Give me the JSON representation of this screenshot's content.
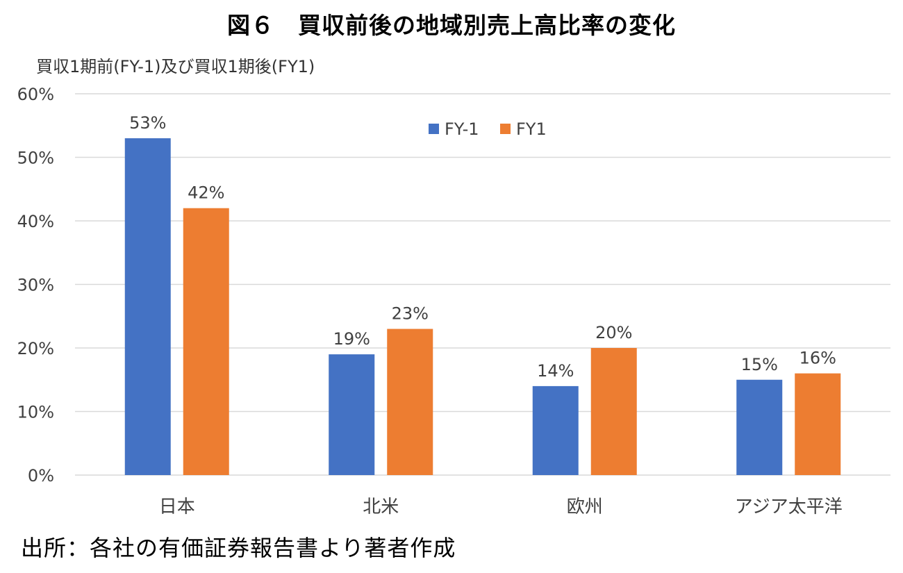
{
  "title": "図６　買収前後の地域別売上高比率の変化",
  "subtitle": "買収1期前(FY-1)及び買収1期後(FY1)",
  "source": "出所：各社の有価証券報告書より著者作成",
  "colors": {
    "fy_minus1": "#4472C4",
    "fy1": "#ED7D31",
    "grid": "#D9D9D9"
  },
  "chart_data": {
    "type": "bar",
    "categories": [
      "日本",
      "北米",
      "欧州",
      "アジア太平洋"
    ],
    "series": [
      {
        "name": "FY-1",
        "values": [
          53,
          19,
          14,
          15
        ],
        "labels": [
          "53%",
          "19%",
          "14%",
          "15%"
        ]
      },
      {
        "name": "FY1",
        "values": [
          42,
          23,
          20,
          16
        ],
        "labels": [
          "42%",
          "23%",
          "20%",
          "16%"
        ]
      }
    ],
    "ylim": [
      0,
      60
    ],
    "yticks": [
      "0%",
      "10%",
      "20%",
      "30%",
      "40%",
      "50%",
      "60%"
    ],
    "ytick_values": [
      0,
      10,
      20,
      30,
      40,
      50,
      60
    ],
    "grid": true,
    "legend": "top-center"
  }
}
